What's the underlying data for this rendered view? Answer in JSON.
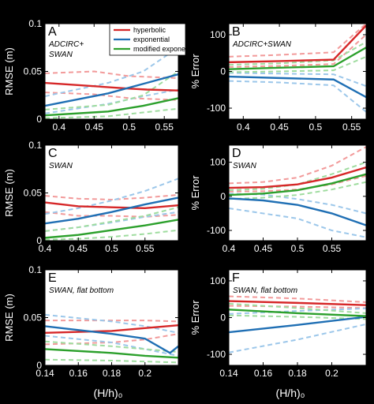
{
  "colors": {
    "hyperbolic": "#d62728",
    "exponential": "#1f6fb4",
    "modified_exponential": "#2ca02c",
    "hyperbolic_light": "#f29a9a",
    "exponential_light": "#9cc7ea",
    "modified_exponential_light": "#9fdc9f",
    "background": "#000000",
    "axes": "#ffffff"
  },
  "legend": {
    "entries": [
      "hyperbolic",
      "exponential",
      "modified exponential"
    ]
  },
  "shared_xlabel": "(H/h)₀",
  "chart_data": [
    {
      "type": "line",
      "panel": "A",
      "annotation": [
        "ADCIRC+",
        "SWAN"
      ],
      "ylabel": "RMSE (m)",
      "xlim": [
        0.38,
        0.57
      ],
      "ylim": [
        0,
        0.1
      ],
      "xticks": [
        "0.4",
        "0.45",
        "0.5",
        "0.55"
      ],
      "xtick_values": [
        0.4,
        0.45,
        0.5,
        0.55
      ],
      "yticks": [
        "0",
        "0.05",
        "0.1"
      ],
      "ytick_values": [
        0,
        0.05,
        0.1
      ],
      "series": [
        {
          "name": "hyperbolic",
          "x": [
            0.38,
            0.5,
            0.525,
            0.57
          ],
          "y": [
            0.038,
            0.032,
            0.031,
            0.03
          ]
        },
        {
          "name": "exponential",
          "x": [
            0.38,
            0.47,
            0.52,
            0.57
          ],
          "y": [
            0.014,
            0.027,
            0.037,
            0.047
          ]
        },
        {
          "name": "modified exponential",
          "x": [
            0.38,
            0.47,
            0.52,
            0.57
          ],
          "y": [
            0.004,
            0.008,
            0.014,
            0.022
          ]
        }
      ],
      "bounds": [
        {
          "name": "hyperbolic",
          "x": [
            0.38,
            0.45,
            0.5,
            0.57
          ],
          "upper": [
            0.048,
            0.05,
            0.045,
            0.043
          ],
          "lower": [
            0.028,
            0.026,
            0.022,
            0.02
          ]
        },
        {
          "name": "exponential",
          "x": [
            0.38,
            0.47,
            0.52,
            0.57
          ],
          "upper": [
            0.024,
            0.038,
            0.05,
            0.075
          ],
          "lower": [
            0.006,
            0.016,
            0.024,
            0.031
          ]
        },
        {
          "name": "modified exponential",
          "x": [
            0.38,
            0.47,
            0.52,
            0.57
          ],
          "upper": [
            0.01,
            0.015,
            0.025,
            0.05
          ],
          "lower": [
            0.001,
            0.003,
            0.007,
            0.011
          ]
        }
      ]
    },
    {
      "type": "line",
      "panel": "B",
      "annotation": [
        "ADCIRC+SWAN"
      ],
      "ylabel": "% Error",
      "xlim": [
        0.38,
        0.57
      ],
      "ylim": [
        -130,
        130
      ],
      "xticks": [
        "0.4",
        "0.45",
        "0.5",
        "0.55"
      ],
      "xtick_values": [
        0.4,
        0.45,
        0.5,
        0.55
      ],
      "yticks": [
        "-100",
        "0",
        "100"
      ],
      "ytick_values": [
        -100,
        0,
        100
      ],
      "series": [
        {
          "name": "hyperbolic",
          "x": [
            0.38,
            0.45,
            0.525,
            0.57
          ],
          "y": [
            25,
            28,
            32,
            125
          ]
        },
        {
          "name": "exponential",
          "x": [
            0.38,
            0.45,
            0.525,
            0.57
          ],
          "y": [
            -14,
            -18,
            -22,
            -70
          ]
        },
        {
          "name": "modified exponential",
          "x": [
            0.38,
            0.45,
            0.525,
            0.57
          ],
          "y": [
            6,
            10,
            14,
            65
          ]
        }
      ],
      "bounds": [
        {
          "name": "hyperbolic",
          "x": [
            0.38,
            0.45,
            0.525,
            0.57
          ],
          "upper": [
            40,
            45,
            52,
            130
          ],
          "lower": [
            12,
            15,
            20,
            100
          ]
        },
        {
          "name": "exponential",
          "x": [
            0.38,
            0.45,
            0.525,
            0.57
          ],
          "upper": [
            -4,
            -6,
            -8,
            -40
          ],
          "lower": [
            -26,
            -30,
            -38,
            -110
          ]
        },
        {
          "name": "modified exponential",
          "x": [
            0.38,
            0.45,
            0.525,
            0.57
          ],
          "upper": [
            18,
            22,
            30,
            80
          ],
          "lower": [
            -2,
            0,
            3,
            40
          ]
        }
      ]
    },
    {
      "type": "line",
      "panel": "C",
      "annotation": [
        "SWAN"
      ],
      "ylabel": "RMSE (m)",
      "xlim": [
        0.4,
        0.6
      ],
      "ylim": [
        0,
        0.1
      ],
      "xticks": [
        "0.4",
        "0.45",
        "0.5",
        "0.55"
      ],
      "xtick_values": [
        0.4,
        0.45,
        0.5,
        0.55
      ],
      "yticks": [
        "0",
        "0.05",
        "0.1"
      ],
      "ytick_values": [
        0,
        0.05,
        0.1
      ],
      "series": [
        {
          "name": "hyperbolic",
          "x": [
            0.4,
            0.45,
            0.5,
            0.55,
            0.6
          ],
          "y": [
            0.04,
            0.036,
            0.035,
            0.034,
            0.037
          ]
        },
        {
          "name": "exponential",
          "x": [
            0.4,
            0.45,
            0.5,
            0.55,
            0.6
          ],
          "y": [
            0.018,
            0.023,
            0.03,
            0.038,
            0.045
          ]
        },
        {
          "name": "modified exponential",
          "x": [
            0.4,
            0.45,
            0.5,
            0.55,
            0.6
          ],
          "y": [
            0.003,
            0.006,
            0.011,
            0.016,
            0.022
          ]
        }
      ],
      "bounds": [
        {
          "name": "hyperbolic",
          "x": [
            0.4,
            0.45,
            0.5,
            0.55,
            0.6
          ],
          "upper": [
            0.047,
            0.044,
            0.043,
            0.045,
            0.048
          ],
          "lower": [
            0.03,
            0.026,
            0.026,
            0.025,
            0.027
          ]
        },
        {
          "name": "exponential",
          "x": [
            0.4,
            0.45,
            0.5,
            0.55,
            0.6
          ],
          "upper": [
            0.028,
            0.034,
            0.042,
            0.052,
            0.065
          ],
          "lower": [
            0.01,
            0.014,
            0.019,
            0.025,
            0.03
          ]
        },
        {
          "name": "modified exponential",
          "x": [
            0.4,
            0.45,
            0.5,
            0.55,
            0.6
          ],
          "upper": [
            0.01,
            0.014,
            0.02,
            0.026,
            0.035
          ],
          "lower": [
            0.001,
            0.002,
            0.004,
            0.007,
            0.011
          ]
        }
      ]
    },
    {
      "type": "line",
      "panel": "D",
      "annotation": [
        "SWAN"
      ],
      "ylabel": "% Error",
      "xlim": [
        0.4,
        0.6
      ],
      "ylim": [
        -130,
        150
      ],
      "xticks": [
        "0.4",
        "0.45",
        "0.5",
        "0.55"
      ],
      "xtick_values": [
        0.4,
        0.45,
        0.5,
        0.55
      ],
      "yticks": [
        "-100",
        "0",
        "100"
      ],
      "ytick_values": [
        -100,
        0,
        100
      ],
      "series": [
        {
          "name": "hyperbolic",
          "x": [
            0.4,
            0.45,
            0.5,
            0.55,
            0.6
          ],
          "y": [
            25,
            27,
            35,
            55,
            85
          ]
        },
        {
          "name": "exponential",
          "x": [
            0.4,
            0.45,
            0.5,
            0.55,
            0.6
          ],
          "y": [
            -6,
            -12,
            -25,
            -50,
            -85
          ]
        },
        {
          "name": "modified exponential",
          "x": [
            0.4,
            0.45,
            0.5,
            0.55,
            0.6
          ],
          "y": [
            4,
            8,
            18,
            38,
            65
          ]
        }
      ],
      "bounds": [
        {
          "name": "hyperbolic",
          "x": [
            0.4,
            0.45,
            0.5,
            0.55,
            0.6
          ],
          "upper": [
            38,
            42,
            55,
            90,
            145
          ],
          "lower": [
            14,
            15,
            20,
            35,
            60
          ]
        },
        {
          "name": "exponential",
          "x": [
            0.4,
            0.45,
            0.5,
            0.55,
            0.6
          ],
          "upper": [
            8,
            5,
            -8,
            -25,
            -50
          ],
          "lower": [
            -35,
            -50,
            -65,
            -100,
            -120
          ]
        },
        {
          "name": "modified exponential",
          "x": [
            0.4,
            0.45,
            0.5,
            0.55,
            0.6
          ],
          "upper": [
            18,
            22,
            35,
            65,
            100
          ],
          "lower": [
            -8,
            -4,
            4,
            20,
            42
          ]
        }
      ]
    },
    {
      "type": "line",
      "panel": "E",
      "annotation": [
        "SWAN, flat bottom"
      ],
      "ylabel": "RMSE (m)",
      "xlim": [
        0.14,
        0.22
      ],
      "ylim": [
        0,
        0.1
      ],
      "xticks": [
        "0.14",
        "0.16",
        "0.18",
        "0.2"
      ],
      "xtick_values": [
        0.14,
        0.16,
        0.18,
        0.2
      ],
      "yticks": [
        "0",
        "0.05",
        "0.1"
      ],
      "ytick_values": [
        0,
        0.05,
        0.1
      ],
      "series": [
        {
          "name": "hyperbolic",
          "x": [
            0.14,
            0.18,
            0.2,
            0.22
          ],
          "y": [
            0.034,
            0.036,
            0.039,
            0.042
          ]
        },
        {
          "name": "exponential",
          "x": [
            0.14,
            0.18,
            0.2,
            0.215,
            0.22
          ],
          "y": [
            0.041,
            0.033,
            0.028,
            0.013,
            0.02
          ]
        },
        {
          "name": "modified exponential",
          "x": [
            0.14,
            0.18,
            0.2,
            0.22
          ],
          "y": [
            0.017,
            0.013,
            0.01,
            0.008
          ]
        }
      ],
      "bounds": [
        {
          "name": "hyperbolic",
          "x": [
            0.14,
            0.18,
            0.2,
            0.22
          ],
          "upper": [
            0.047,
            0.047,
            0.047,
            0.046
          ],
          "lower": [
            0.022,
            0.024,
            0.027,
            0.033
          ]
        },
        {
          "name": "exponential",
          "x": [
            0.14,
            0.18,
            0.2,
            0.22
          ],
          "upper": [
            0.053,
            0.046,
            0.041,
            0.034
          ],
          "lower": [
            0.031,
            0.024,
            0.017,
            0.01
          ]
        },
        {
          "name": "modified exponential",
          "x": [
            0.14,
            0.18,
            0.2,
            0.22
          ],
          "upper": [
            0.025,
            0.02,
            0.017,
            0.014
          ],
          "lower": [
            0.006,
            0.005,
            0.004,
            0.003
          ]
        }
      ]
    },
    {
      "type": "line",
      "panel": "F",
      "annotation": [
        "SWAN, flat bottom"
      ],
      "ylabel": "% Error",
      "xlim": [
        0.14,
        0.22
      ],
      "ylim": [
        -130,
        130
      ],
      "xticks": [
        "0.14",
        "0.16",
        "0.18",
        "0.2"
      ],
      "xtick_values": [
        0.14,
        0.16,
        0.18,
        0.2
      ],
      "yticks": [
        "-100",
        "0",
        "100"
      ],
      "ytick_values": [
        -100,
        0,
        100
      ],
      "series": [
        {
          "name": "hyperbolic",
          "x": [
            0.14,
            0.18,
            0.22
          ],
          "y": [
            45,
            40,
            34
          ]
        },
        {
          "name": "exponential",
          "x": [
            0.14,
            0.18,
            0.22
          ],
          "y": [
            -40,
            -20,
            2
          ]
        },
        {
          "name": "modified exponential",
          "x": [
            0.14,
            0.18,
            0.22
          ],
          "y": [
            22,
            12,
            4
          ]
        }
      ],
      "bounds": [
        {
          "name": "hyperbolic",
          "x": [
            0.14,
            0.18,
            0.22
          ],
          "upper": [
            58,
            52,
            42
          ],
          "lower": [
            32,
            30,
            26
          ]
        },
        {
          "name": "exponential",
          "x": [
            0.14,
            0.18,
            0.22
          ],
          "upper": [
            10,
            18,
            25
          ],
          "lower": [
            -95,
            -60,
            -18
          ]
        },
        {
          "name": "modified exponential",
          "x": [
            0.14,
            0.18,
            0.22
          ],
          "upper": [
            38,
            26,
            12
          ],
          "lower": [
            6,
            2,
            -4
          ]
        }
      ]
    }
  ]
}
